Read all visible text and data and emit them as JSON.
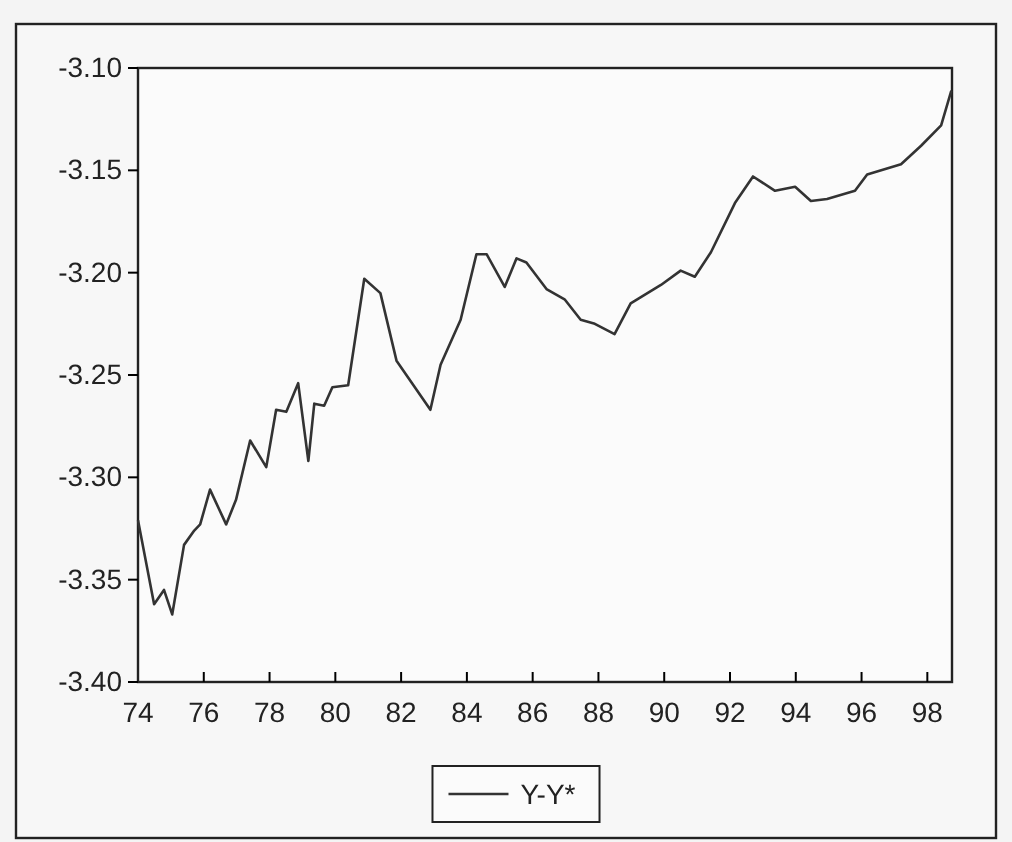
{
  "chart_data": {
    "type": "line",
    "legend": "bottom",
    "xlim": [
      74,
      98.75
    ],
    "xticks": [
      74,
      76,
      78,
      80,
      82,
      84,
      86,
      88,
      90,
      92,
      94,
      96,
      98
    ],
    "ylim": [
      -3.4,
      -3.1
    ],
    "yticks": [
      {
        "value": -3.4,
        "label": "-3.40"
      },
      {
        "value": -3.35,
        "label": "-3.35"
      },
      {
        "value": -3.3,
        "label": "-3.30"
      },
      {
        "value": -3.25,
        "label": "-3.25"
      },
      {
        "value": -3.2,
        "label": "-3.20"
      },
      {
        "value": -3.15,
        "label": "-3.15"
      },
      {
        "value": -3.1,
        "label": "-3.10"
      }
    ],
    "grid": false,
    "marker": "none",
    "line_style": "solid",
    "series": [
      {
        "name": "Y-Y*",
        "color": "#333333",
        "x": [
          74.0,
          74.49,
          74.79,
          75.04,
          75.4,
          75.71,
          75.89,
          76.19,
          76.68,
          76.98,
          77.41,
          77.9,
          78.2,
          78.51,
          78.87,
          79.18,
          79.36,
          79.66,
          79.91,
          80.39,
          80.88,
          81.37,
          81.86,
          82.89,
          83.2,
          83.81,
          84.29,
          84.6,
          85.15,
          85.51,
          85.81,
          86.42,
          86.97,
          87.46,
          87.89,
          88.49,
          88.98,
          89.9,
          90.5,
          90.93,
          91.42,
          92.15,
          92.7,
          93.37,
          93.98,
          94.46,
          94.95,
          95.8,
          96.17,
          97.2,
          97.81,
          98.42,
          98.73
        ],
        "values": [
          -3.321,
          -3.362,
          -3.355,
          -3.367,
          -3.333,
          -3.326,
          -3.323,
          -3.306,
          -3.323,
          -3.311,
          -3.282,
          -3.295,
          -3.267,
          -3.268,
          -3.254,
          -3.292,
          -3.264,
          -3.265,
          -3.256,
          -3.255,
          -3.203,
          -3.21,
          -3.243,
          -3.267,
          -3.245,
          -3.223,
          -3.191,
          -3.191,
          -3.207,
          -3.193,
          -3.195,
          -3.208,
          -3.213,
          -3.223,
          -3.225,
          -3.23,
          -3.215,
          -3.206,
          -3.199,
          -3.202,
          -3.19,
          -3.166,
          -3.153,
          -3.16,
          -3.158,
          -3.165,
          -3.164,
          -3.16,
          -3.152,
          -3.147,
          -3.138,
          -3.128,
          -3.111
        ]
      }
    ]
  }
}
